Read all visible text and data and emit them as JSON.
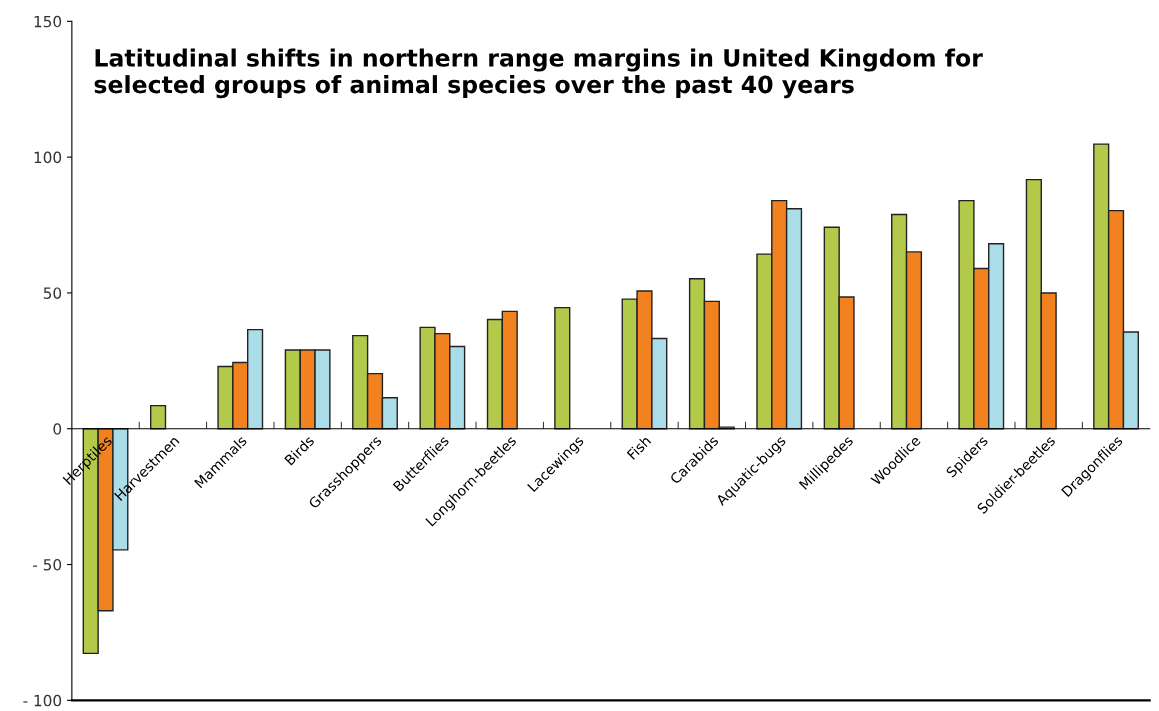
{
  "chart_data": {
    "type": "bar",
    "title": "Latitudinal shifts in northern range margins in United Kingdom for\nselected groups of animal species over the past 40 years",
    "categories": [
      "Herptiles",
      "Harvestmen",
      "Mammals",
      "Birds",
      "Grasshoppers",
      "Butterflies",
      "Longhorn-beetles",
      "Lacewings",
      "Fish",
      "Carabids",
      "Aquatic-bugs",
      "Millipedes",
      "Woodlice",
      "Spiders",
      "Soldier-beetles",
      "Dragonflies"
    ],
    "series": [
      {
        "color": "#b2c94a",
        "values": [
          -82.7,
          8.5,
          22.9,
          29,
          34.3,
          37.3,
          40.2,
          44.6,
          47.7,
          55.2,
          64.3,
          74.2,
          78.9,
          84,
          91.7,
          104.8
        ]
      },
      {
        "color": "#f28220",
        "values": [
          -67,
          null,
          24.4,
          29,
          20.3,
          35,
          43.2,
          null,
          50.7,
          46.9,
          84,
          48.5,
          65.1,
          59,
          50,
          80.3
        ]
      },
      {
        "color": "#abdde8",
        "values": [
          -44.6,
          null,
          36.5,
          29,
          11.4,
          30.3,
          null,
          null,
          33.2,
          0.6,
          81,
          null,
          null,
          68.1,
          null,
          35.6
        ]
      }
    ],
    "ylim": [
      -100,
      150
    ],
    "yticks": [
      {
        "value": -100,
        "label": "- 100"
      },
      {
        "value": -50,
        "label": "- 50"
      },
      0,
      50,
      100,
      150
    ],
    "grid": false
  }
}
